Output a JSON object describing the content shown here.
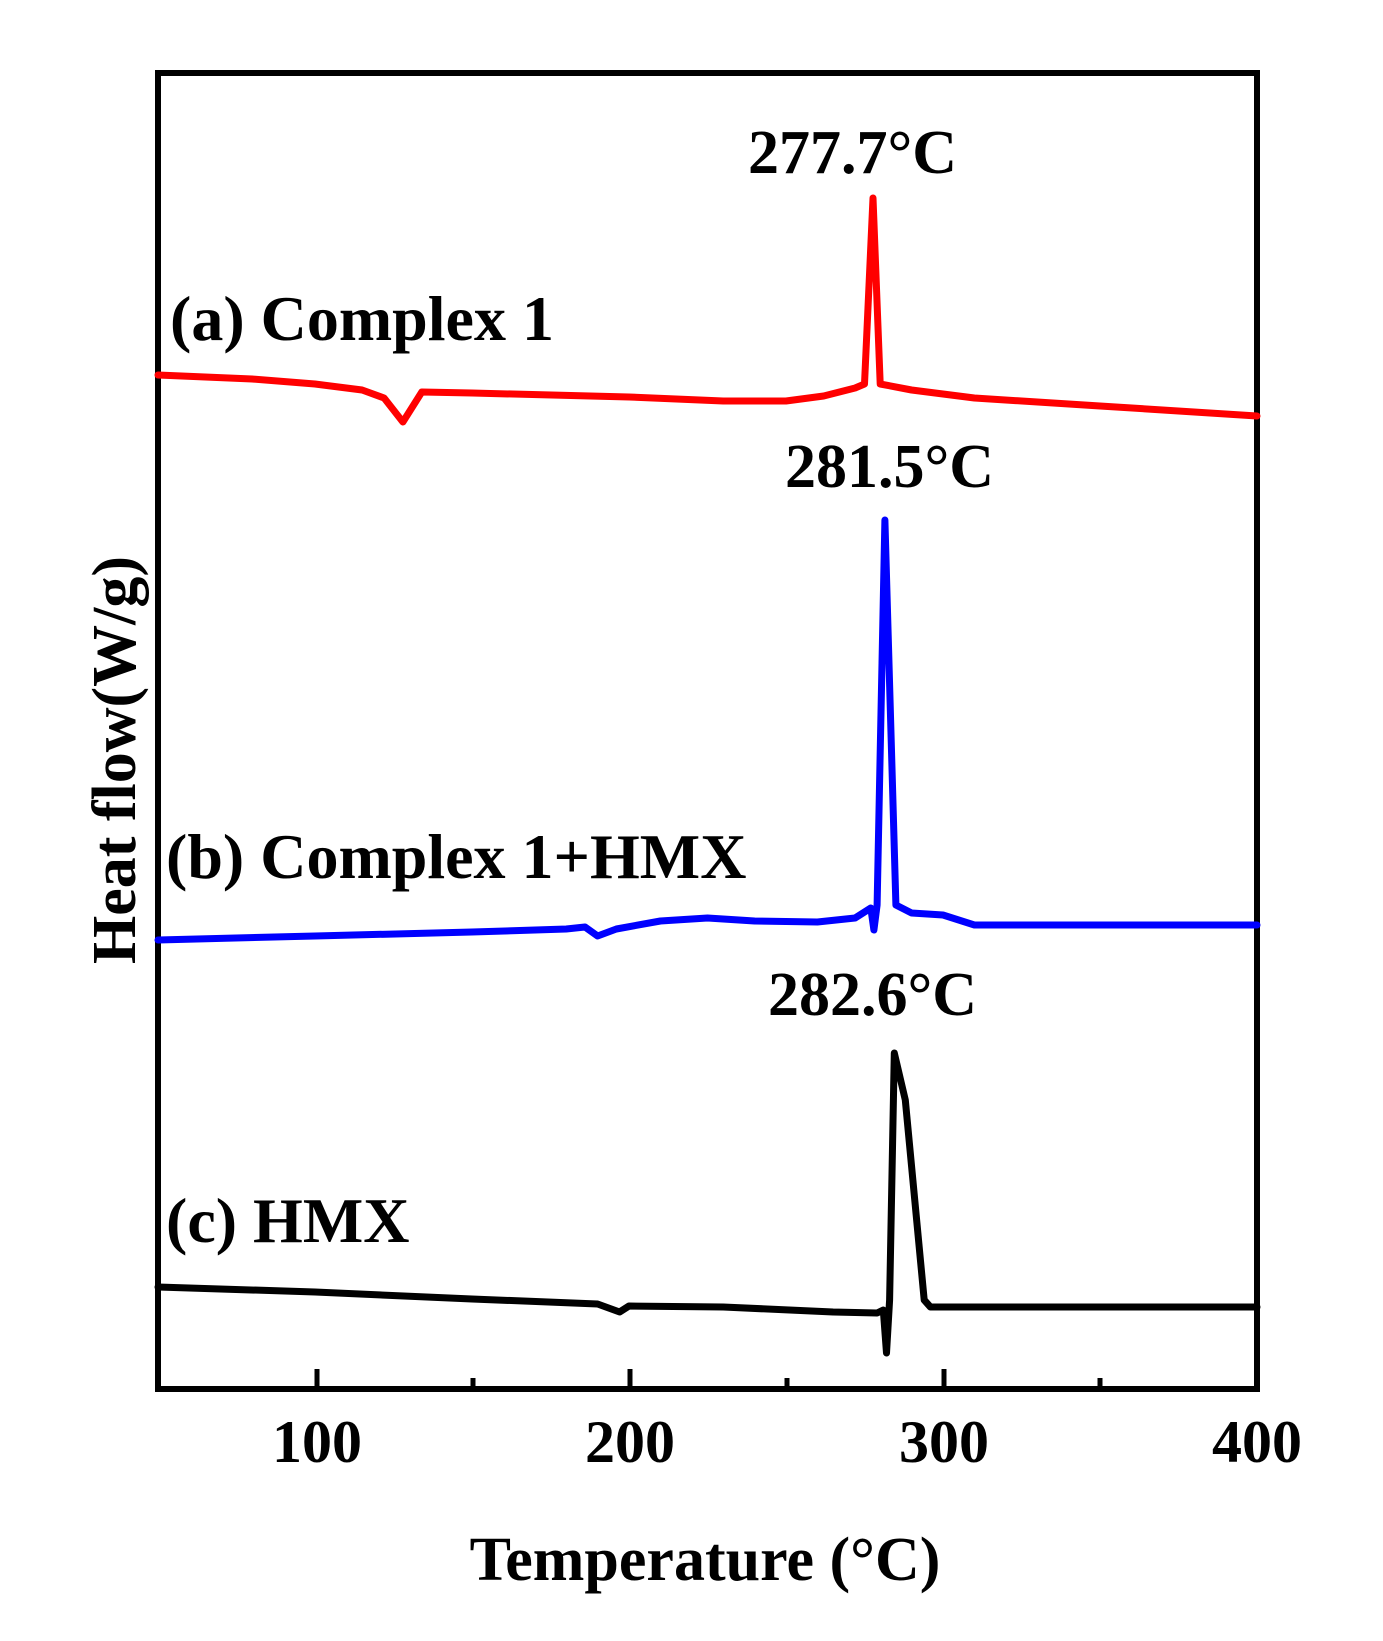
{
  "chart_data": {
    "type": "line",
    "title": "",
    "xlabel": "Temperature (°C)",
    "ylabel": "Heat flow(W/g)",
    "xlim": [
      50,
      400
    ],
    "x_ticks": [
      100,
      200,
      300,
      400
    ],
    "x_minor_ticks": [
      150,
      250,
      350
    ],
    "y_ticks": [],
    "grid": false,
    "legend": "inline labels",
    "series": [
      {
        "name": "(a) Complex 1",
        "color": "#ff0000",
        "peak_label": "277.7°C",
        "peak_temperature": 277.7,
        "endotherm_dip_temperature": 128,
        "points": [
          [
            50,
            375
          ],
          [
            80,
            379
          ],
          [
            100,
            384
          ],
          [
            115,
            390
          ],
          [
            122,
            398
          ],
          [
            128,
            422
          ],
          [
            134,
            392
          ],
          [
            150,
            393
          ],
          [
            200,
            397
          ],
          [
            230,
            401
          ],
          [
            250,
            401
          ],
          [
            262,
            396
          ],
          [
            272,
            388
          ],
          [
            275,
            384
          ],
          [
            277.7,
            198
          ],
          [
            280,
            384
          ],
          [
            290,
            390
          ],
          [
            310,
            398
          ],
          [
            350,
            406
          ],
          [
            400,
            416
          ]
        ]
      },
      {
        "name": "(b) Complex 1+HMX",
        "color": "#0000ff",
        "peak_label": "281.5°C",
        "peak_temperature": 281.5,
        "endotherm_dip_temperature": 190,
        "points": [
          [
            50,
            940
          ],
          [
            100,
            936
          ],
          [
            150,
            932
          ],
          [
            180,
            929
          ],
          [
            186,
            927
          ],
          [
            190,
            936
          ],
          [
            196,
            929
          ],
          [
            210,
            921
          ],
          [
            225,
            918
          ],
          [
            240,
            921
          ],
          [
            260,
            922
          ],
          [
            272,
            918
          ],
          [
            277,
            908
          ],
          [
            278,
            930
          ],
          [
            279,
            905
          ],
          [
            281.5,
            520
          ],
          [
            285,
            905
          ],
          [
            290,
            913
          ],
          [
            300,
            915
          ],
          [
            310,
            925
          ],
          [
            400,
            925
          ]
        ]
      },
      {
        "name": "(c) HMX",
        "color": "#000000",
        "peak_label": "282.6°C",
        "peak_temperature": 282.6,
        "endotherm_dip_temperature": 197,
        "points": [
          [
            50,
            1287
          ],
          [
            100,
            1292
          ],
          [
            150,
            1299
          ],
          [
            190,
            1304
          ],
          [
            197,
            1312
          ],
          [
            200,
            1306
          ],
          [
            230,
            1307
          ],
          [
            265,
            1312
          ],
          [
            279,
            1313
          ],
          [
            281,
            1310
          ],
          [
            282,
            1353
          ],
          [
            283,
            1300
          ],
          [
            284.5,
            1053
          ],
          [
            288,
            1100
          ],
          [
            294,
            1300
          ],
          [
            296,
            1307
          ],
          [
            400,
            1307
          ]
        ]
      }
    ]
  },
  "labels": {
    "series_a": "(a) Complex 1",
    "series_b": "(b) Complex 1+HMX",
    "series_c": "(c) HMX",
    "peak_a": "277.7°C",
    "peak_b": "281.5°C",
    "peak_c": "282.6°C",
    "xlabel": "Temperature (°C)",
    "ylabel": "Heat flow(W/g)",
    "tick_100": "100",
    "tick_200": "200",
    "tick_300": "300",
    "tick_400": "400"
  }
}
